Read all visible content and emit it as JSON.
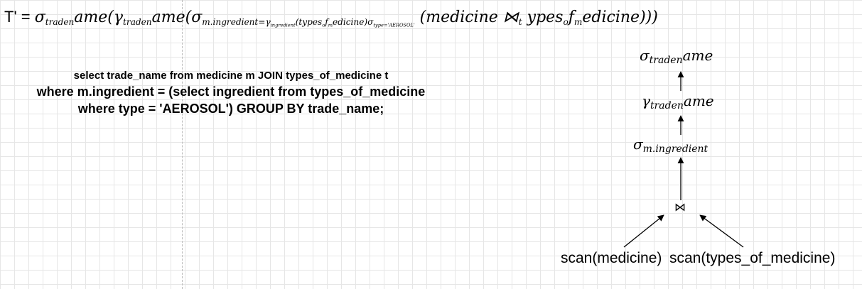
{
  "formula": {
    "prefix": "T' = ",
    "sigma": "σ",
    "gamma": "γ",
    "trade_sub": "trade",
    "n_sub": "n",
    "ame": "ame",
    "open_paren": "(",
    "close_paren": ")",
    "close_end": ")))",
    "m_ingredient": "m.ingredient",
    "eq": "=",
    "gamma_sub": "ingredient",
    "types": "(types",
    "o_sub": "o",
    "f": "f",
    "m_sub": "m",
    "edicine_close": "edicine)",
    "sigma_type_sub": "type='AEROSOL'",
    "join_open": "(medicine ⋈",
    "t_sub": "t",
    "ypes": " ypes",
    "edicine": "edicine"
  },
  "sql": {
    "line1": "select trade_name from medicine m JOIN types_of_medicine t",
    "line2": "where m.ingredient = (select ingredient from types_of_medicine",
    "line3": "where type = 'AEROSOL') GROUP BY trade_name;"
  },
  "tree": {
    "sigma_top": "σ",
    "sigma_top_sub1": "trade",
    "sigma_top_sub2": "n",
    "sigma_top_tail": "ame",
    "gamma": "γ",
    "gamma_sub1": "trade",
    "gamma_sub2": "n",
    "gamma_tail": "ame",
    "sigma_ing": "σ",
    "sigma_ing_sub": "m.ingredient",
    "join": "⋈",
    "scan_left": "scan(medicine)",
    "scan_right": "scan(types_of_medicine)"
  }
}
